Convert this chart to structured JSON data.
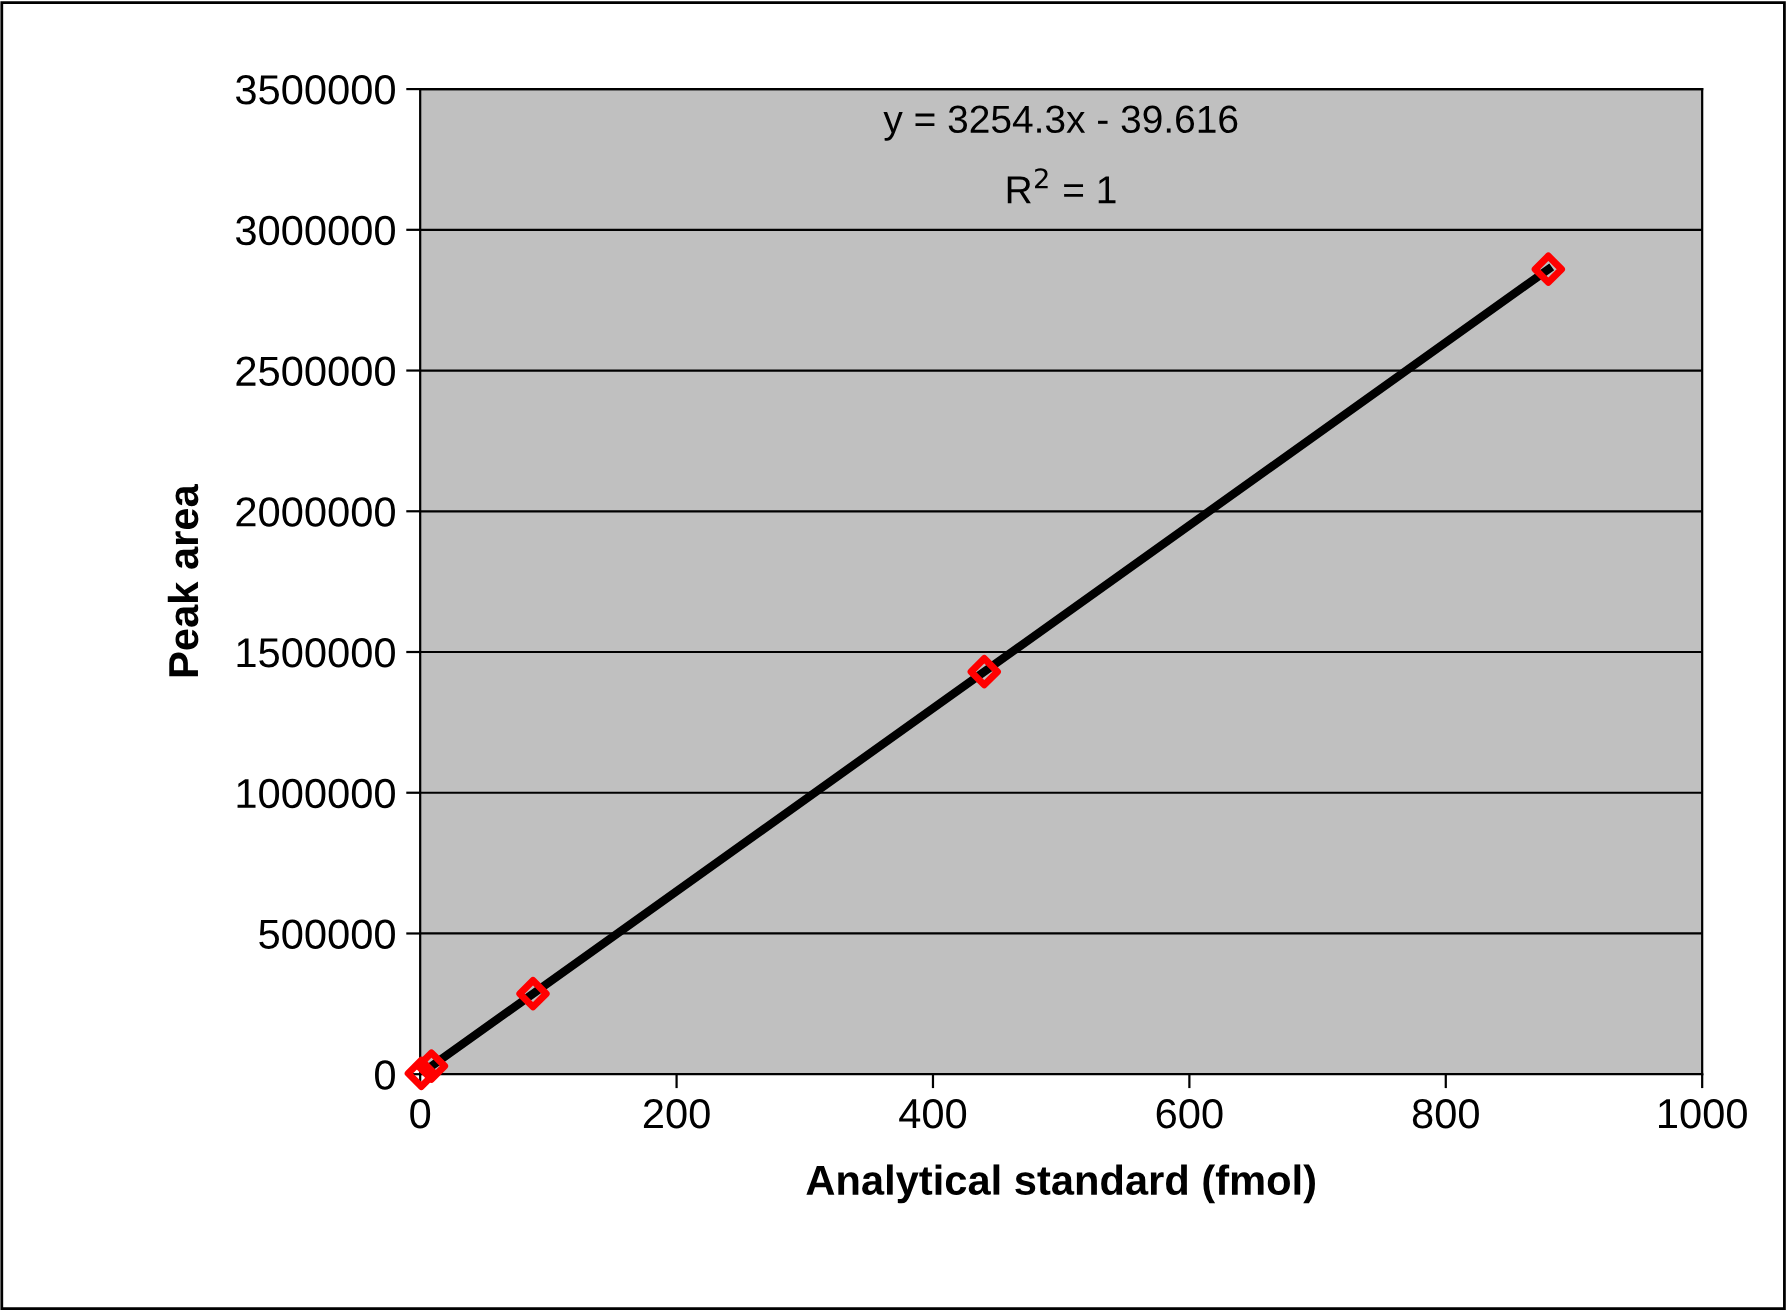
{
  "chart_data": {
    "type": "scatter",
    "xlabel": "Analytical standard (fmol)",
    "ylabel": "Peak area",
    "xlim": [
      0,
      1000
    ],
    "xticks": [
      0,
      200,
      400,
      600,
      800,
      1000
    ],
    "ylim": [
      0,
      3500000
    ],
    "yticks": [
      0,
      500000,
      1000000,
      1500000,
      2000000,
      2500000,
      3000000,
      3500000
    ],
    "grid": "y",
    "marker": "diamond",
    "legend": false,
    "annotations": [
      "y = 3254.3x - 39.616",
      "R$^{2}$ = 1"
    ],
    "series": [
      {
        "type": "line",
        "color": "#000000",
        "x": [
          0,
          880
        ],
        "values": [
          0,
          2860000
        ],
        "marker": "none",
        "line_style": "solid"
      },
      {
        "color": "#ff0000",
        "x": [
          0.9,
          8.8,
          88,
          440,
          880
        ],
        "values": [
          3000,
          29000,
          286000,
          1430000,
          2860000
        ]
      }
    ]
  }
}
